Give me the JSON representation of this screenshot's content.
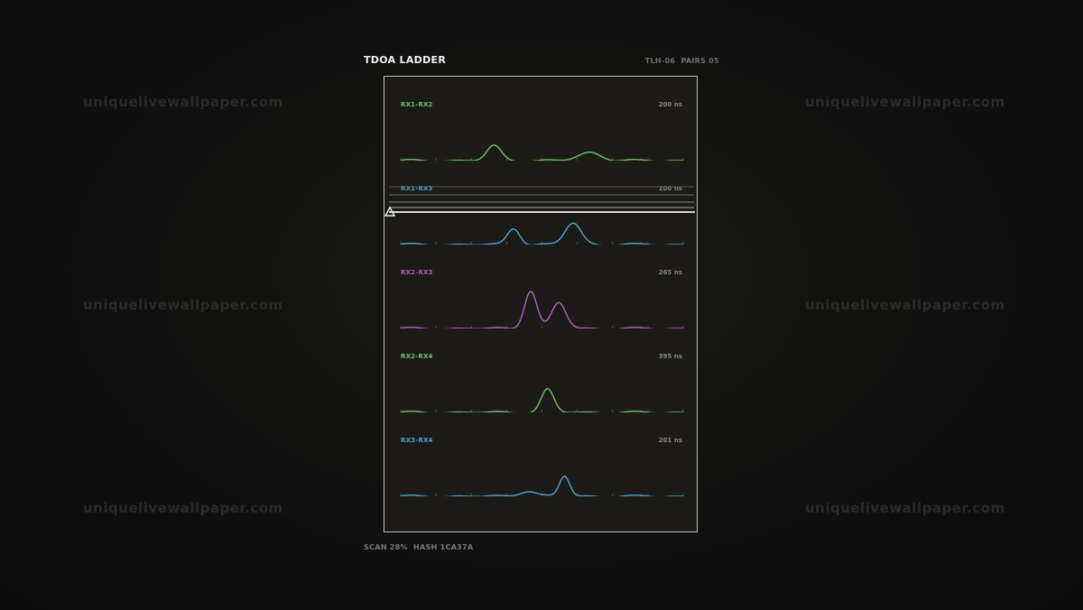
{
  "header": {
    "title": "TDOA LADDER",
    "meta": "TLH-06  PAIRS 05"
  },
  "footer": {
    "status": "SCAN 28%  HASH 1CA37A"
  },
  "watermark": "uniquelivewallpaper.com",
  "scan_progress": 0.28,
  "rows": [
    {
      "label": "RX1-RX2",
      "value": "200 ns",
      "color": "#6fc468",
      "peaks": [
        [
          0.33,
          0.55,
          0.025
        ],
        [
          0.67,
          0.3,
          0.04
        ]
      ]
    },
    {
      "label": "RX1-RX3",
      "value": "200 ns",
      "color": "#4aa8d8",
      "peaks": [
        [
          0.4,
          0.6,
          0.022
        ],
        [
          0.61,
          0.8,
          0.028
        ]
      ]
    },
    {
      "label": "RX2-RX3",
      "value": "265 ns",
      "color": "#b45fc8",
      "peaks": [
        [
          0.46,
          1.4,
          0.022
        ],
        [
          0.56,
          0.95,
          0.025
        ]
      ]
    },
    {
      "label": "RX2-RX4",
      "value": "395 ns",
      "color": "#6fc468",
      "peaks": [
        [
          0.52,
          0.85,
          0.022
        ]
      ]
    },
    {
      "label": "RX3-RX4",
      "value": "201 ns",
      "color": "#4aa8d8",
      "peaks": [
        [
          0.45,
          0.2,
          0.03
        ],
        [
          0.58,
          0.75,
          0.018
        ]
      ]
    }
  ]
}
